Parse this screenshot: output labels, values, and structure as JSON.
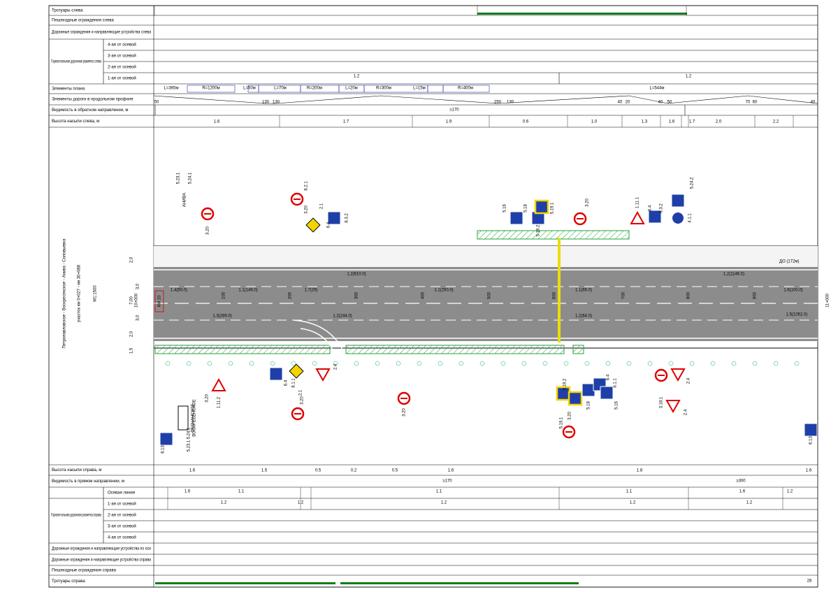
{
  "top_table": {
    "rows": [
      "Тротуары слева",
      "Пешеходные ограждения слева",
      "Дорожные ограждения и направляющие устройства слева",
      "Элементы плана",
      "Элементы дороги в продольном профиле",
      "Видимость в обратном направлении, м",
      "Высота насыпи слева, м"
    ],
    "marking_group": "Горизонтальная дорожная разметка слева",
    "marking_rows": [
      "4-ая от осевой",
      "3-ая от осевой",
      "2-ая от осевой",
      "1-ая от осевой"
    ],
    "marking_values": [
      "1.2",
      "1.2"
    ],
    "plan_elements": [
      "L=365м",
      "R=1200м",
      "L=50м",
      "L=70м",
      "R=200м",
      "L=20м",
      "R=300м",
      "L=15м",
      "R=400м",
      "L=544м"
    ],
    "profile_values": [
      "50",
      "130",
      "130",
      "250",
      "130",
      "40",
      "20",
      "40",
      "50",
      "70",
      "60",
      "40"
    ],
    "visibility": "≥170",
    "embankment": [
      "1.6",
      "1.7",
      "1.9",
      "0.6",
      "1.0",
      "1.3",
      "1.6",
      "1.7",
      "2.0",
      "2.2"
    ]
  },
  "drawing": {
    "title": "Петропавловское - Воскресенское - Анива - Соловьевка",
    "subtitle": "участок км 0+027 - км 30+088",
    "scale": "М1:1500",
    "start_station": "10+000",
    "end_station": "11+000",
    "km_label": "КМ 10",
    "pickets": [
      "100",
      "200",
      "300",
      "400",
      "500",
      "600",
      "700",
      "800",
      "900"
    ],
    "lane_widths": [
      "2,0",
      "3,0",
      "7,00",
      "3,0",
      "2,0",
      "1,5"
    ],
    "markings": [
      "1.2(610.0)",
      "1.4(50.0)",
      "1.1(149.0)",
      "1.7(29)",
      "1.1(250.0)",
      "1.3(289.0)",
      "1.2(244.0)",
      "1.2(1146.0)",
      "1.6(100.0)",
      "1.5(1052.0)",
      "1.1(65.0)",
      "1.2(64.0)"
    ],
    "distance_sign": "ДО (172м)",
    "signs": [
      "5.23.1",
      "5.24.1",
      "3.20",
      "3.20",
      "8.2.1",
      "2.1",
      "6.4",
      "8.3.2",
      "5.16",
      "5.18",
      "5.19.1",
      "5.19.2",
      "3.20",
      "1.11.1",
      "6.4",
      "8.3.2",
      "5.24.2",
      "4.1.1",
      "1.11.2",
      "3.20",
      "6.4",
      "8.1.1",
      "2.1",
      "3.20",
      "2.4",
      "3.20",
      "5.19.1",
      "5.19.2",
      "3.20",
      "5.18",
      "6.4",
      "8.1.1",
      "5.16",
      "3.18.1",
      "2.4",
      "2.4",
      "6.13",
      "8.13",
      "5.23.1",
      "5.24.1"
    ],
    "place_names": [
      "АНИВА",
      "ПЕСЧАНСКОЕ",
      "ВОСКРЕСЕНСКОЕ"
    ]
  },
  "bottom_table": {
    "rows": [
      "Высота насыпи справа, м",
      "Видимость в прямом направлении, м",
      "Дорожные ограждения и направляющие устройства по оси",
      "Дорожные ограждения и направляющие устройства справа",
      "Пешеходные ограждения справа",
      "Тротуары справа"
    ],
    "marking_group": "Горизонтальная дорожная разметка справа",
    "marking_rows": [
      "Осевая линия",
      "1-ая от осевой",
      "2-ая от осевой",
      "3-ая от осевой",
      "4-ая от осевой"
    ],
    "axis_values": [
      "1.6",
      "1.1",
      "1.1",
      "1.1",
      "1.6",
      "1.2"
    ],
    "first_values": [
      "1.2",
      "1.2",
      "1.2",
      "1.2",
      "1.2"
    ],
    "embankment": [
      "1.6",
      "1.5",
      "0.5",
      "0.2",
      "0.5",
      "1.6",
      "1.8",
      "1.6"
    ],
    "visibility": [
      "≥170",
      "≥300"
    ]
  },
  "page_number": "28"
}
